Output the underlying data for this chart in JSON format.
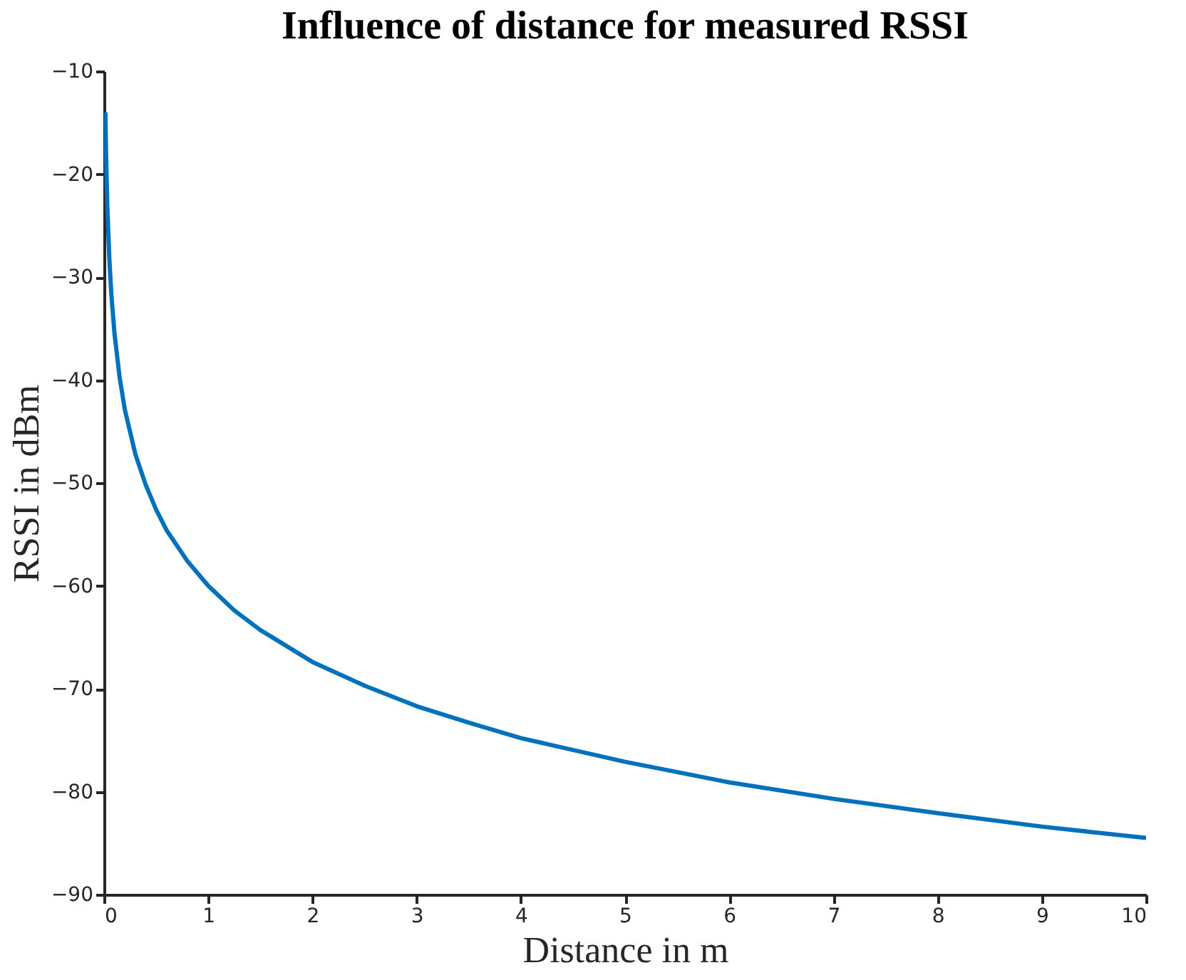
{
  "chart_data": {
    "type": "line",
    "title": "Influence of distance for measured RSSI",
    "xlabel": "Distance in m",
    "ylabel": "RSSI in dBm",
    "series": [
      {
        "color": "#0072bd",
        "x": [
          0.013,
          0.02,
          0.03,
          0.05,
          0.07,
          0.1,
          0.15,
          0.2,
          0.3,
          0.4,
          0.5,
          0.6,
          0.8,
          1,
          1.25,
          1.5,
          2,
          2.5,
          3,
          3.5,
          4,
          5,
          6,
          7,
          8,
          9,
          10
        ],
        "values": [
          -14,
          -18.4,
          -22.7,
          -28.1,
          -31.7,
          -35.5,
          -39.8,
          -42.9,
          -47.2,
          -50.2,
          -52.6,
          -54.6,
          -57.6,
          -60,
          -62.4,
          -64.3,
          -67.4,
          -69.7,
          -71.7,
          -73.3,
          -74.8,
          -77.1,
          -79.1,
          -80.7,
          -82.1,
          -83.4,
          -84.5
        ]
      }
    ],
    "xlim": [
      0,
      10
    ],
    "xticks": [
      0,
      1,
      2,
      3,
      4,
      5,
      6,
      7,
      8,
      9,
      10
    ],
    "ylim": [
      -90,
      -10
    ],
    "yticks": [
      -90,
      -80,
      -70,
      -60,
      -50,
      -40,
      -30,
      -20,
      -10
    ],
    "grid": false,
    "legend": false,
    "marker": "none",
    "line_style": "solid"
  }
}
